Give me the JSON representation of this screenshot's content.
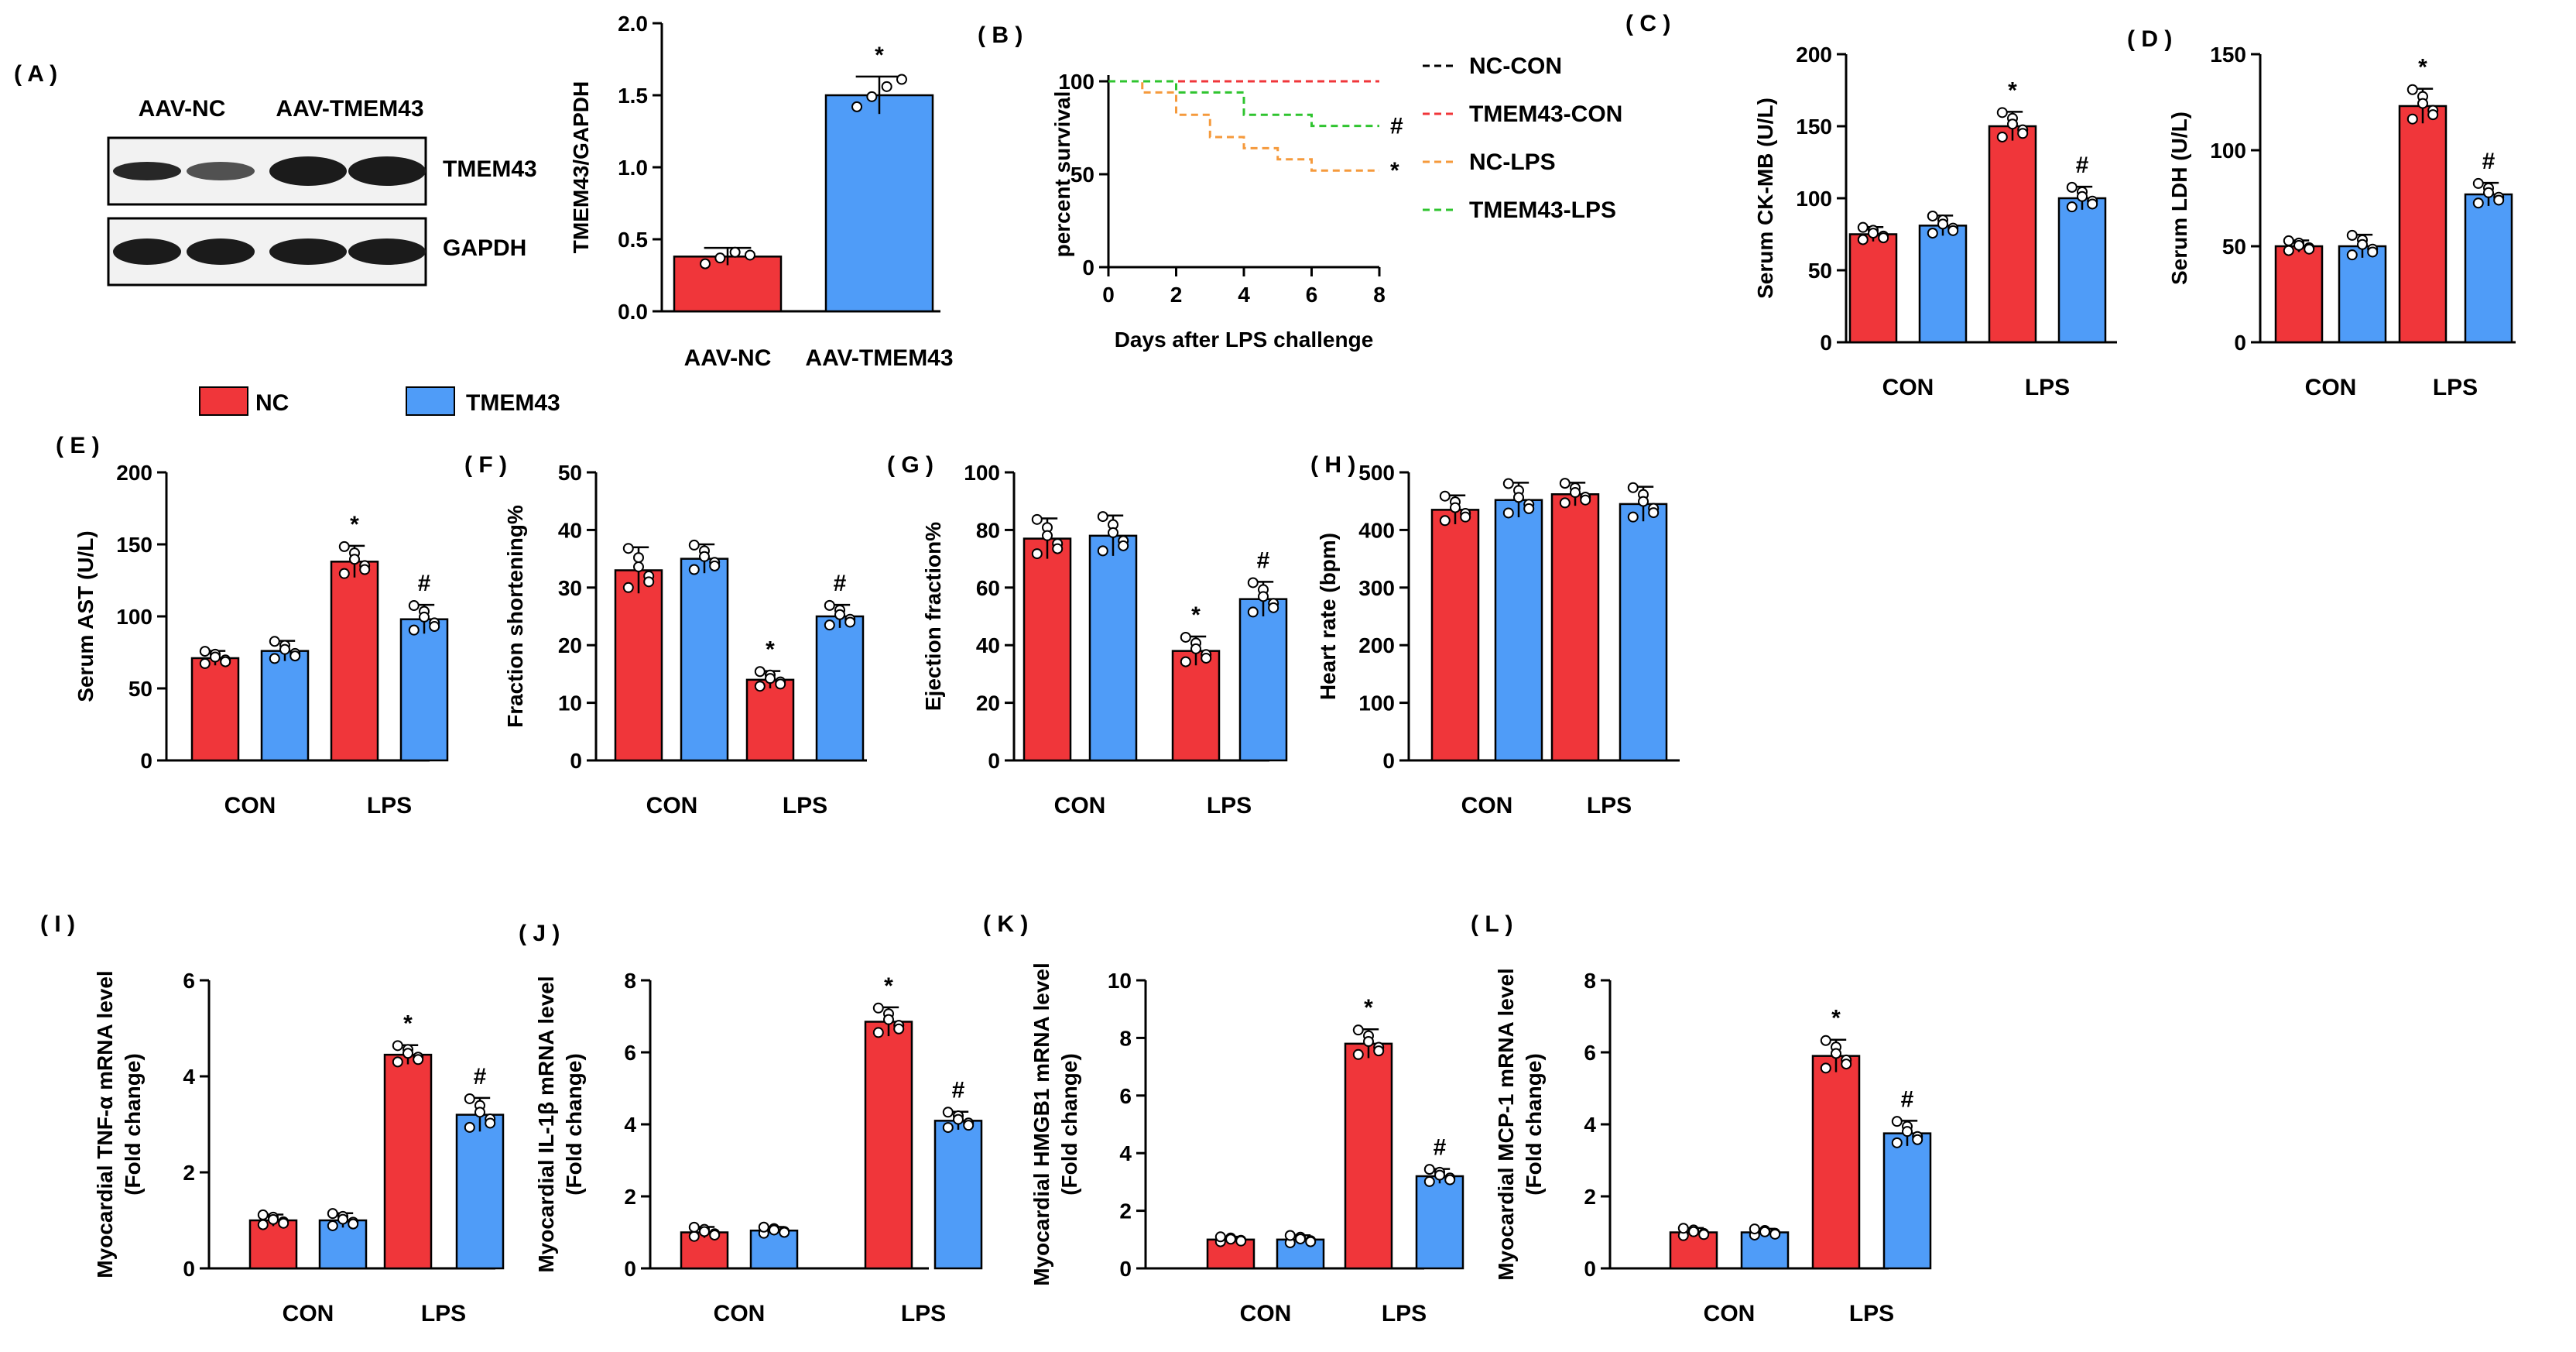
{
  "colors": {
    "nc": "#f0363a",
    "tmem43": "#4f9cf8",
    "blot_bg": "#f2f2f2",
    "band": "#1b1b1b",
    "nc_con": "#000000",
    "tmem43_con": "#f0363a",
    "nc_lps": "#f59a3c",
    "tmem43_lps": "#2fc42f"
  },
  "legend": {
    "nc": "NC",
    "tmem43": "TMEM43"
  },
  "panel_a": {
    "label": "( A )",
    "lane_labels": [
      "AAV-NC",
      "AAV-TMEM43"
    ],
    "band_labels": [
      "TMEM43",
      "GAPDH"
    ],
    "band_intensity": {
      "TMEM43": [
        0.95,
        0.75,
        1.0,
        1.0
      ],
      "GAPDH": [
        1.0,
        1.0,
        1.0,
        1.0
      ]
    }
  },
  "chart_data": [
    {
      "id": "quant",
      "type": "bar",
      "title": "",
      "xlabel": "",
      "ylabel": [
        "TMEM43/GAPDH"
      ],
      "ylim": [
        0,
        2.0
      ],
      "yticks": [
        "0.0",
        "0.5",
        "1.0",
        "1.5",
        "2.0"
      ],
      "bars": [
        {
          "label": "AAV-NC",
          "value": 0.38,
          "error": 0.06,
          "group": "nc",
          "points": [
            0.33,
            0.37,
            0.41,
            0.39
          ]
        },
        {
          "label": "AAV-TMEM43",
          "value": 1.5,
          "error": 0.13,
          "group": "tmem43",
          "points": [
            1.42,
            1.49,
            1.56,
            1.61
          ]
        }
      ],
      "annotations": [
        {
          "bar": 1,
          "text": "*"
        }
      ]
    },
    {
      "id": "B",
      "type": "line",
      "label": "( B )",
      "xlabel": "Days after LPS challenge",
      "ylabel": [
        "percent survival"
      ],
      "xlim": [
        0,
        8
      ],
      "xticks": [
        "0",
        "2",
        "4",
        "6",
        "8"
      ],
      "ylim": [
        0,
        100
      ],
      "yticks": [
        "0",
        "50",
        "100"
      ],
      "series": [
        {
          "name": "NC-CON",
          "color_key": "nc_con",
          "x": [
            0,
            8
          ],
          "y": [
            100,
            100
          ]
        },
        {
          "name": "TMEM43-CON",
          "color_key": "tmem43_con",
          "x": [
            0,
            8
          ],
          "y": [
            100,
            100
          ]
        },
        {
          "name": "NC-LPS",
          "color_key": "nc_lps",
          "x": [
            0,
            1,
            1,
            2,
            2,
            3,
            3,
            4,
            4,
            5,
            5,
            6,
            6,
            8
          ],
          "y": [
            100,
            100,
            94,
            94,
            82,
            82,
            70,
            70,
            64,
            64,
            58,
            58,
            52,
            52
          ]
        },
        {
          "name": "TMEM43-LPS",
          "color_key": "tmem43_lps",
          "x": [
            0,
            2,
            2,
            4,
            4,
            6,
            6,
            8
          ],
          "y": [
            100,
            100,
            94,
            94,
            82,
            82,
            76,
            76
          ]
        }
      ],
      "end_marks": [
        {
          "series": 3,
          "text": "#"
        },
        {
          "series": 2,
          "text": "*"
        }
      ]
    },
    {
      "id": "C",
      "type": "bar",
      "label": "( C )",
      "ylabel": [
        "Serum CK-MB (U/L)"
      ],
      "ylim": [
        0,
        200
      ],
      "yticks": [
        "0",
        "50",
        "100",
        "150",
        "200"
      ],
      "categories": [
        "CON",
        "LPS"
      ],
      "series": [
        {
          "name": "NC",
          "values": [
            75,
            150
          ],
          "errors": [
            5,
            10
          ]
        },
        {
          "name": "TMEM43",
          "values": [
            81,
            100
          ],
          "errors": [
            7,
            8
          ]
        }
      ],
      "annotations": [
        {
          "bar": 2,
          "text": "*"
        },
        {
          "bar": 3,
          "text": "#"
        }
      ]
    },
    {
      "id": "D",
      "type": "bar",
      "label": "( D )",
      "ylabel": [
        "Serum LDH (U/L)"
      ],
      "ylim": [
        0,
        150
      ],
      "yticks": [
        "0",
        "50",
        "100",
        "150"
      ],
      "categories": [
        "CON",
        "LPS"
      ],
      "series": [
        {
          "name": "NC",
          "values": [
            50,
            123
          ],
          "errors": [
            3,
            9
          ]
        },
        {
          "name": "TMEM43",
          "values": [
            50,
            77
          ],
          "errors": [
            6,
            6
          ]
        }
      ],
      "annotations": [
        {
          "bar": 2,
          "text": "*"
        },
        {
          "bar": 3,
          "text": "#"
        }
      ]
    },
    {
      "id": "E",
      "type": "bar",
      "label": "( E )",
      "ylabel": [
        "Serum AST (U/L)"
      ],
      "ylim": [
        0,
        200
      ],
      "yticks": [
        "0",
        "50",
        "100",
        "150",
        "200"
      ],
      "categories": [
        "CON",
        "LPS"
      ],
      "series": [
        {
          "name": "NC",
          "values": [
            71,
            138
          ],
          "errors": [
            5,
            11
          ]
        },
        {
          "name": "TMEM43",
          "values": [
            76,
            98
          ],
          "errors": [
            7,
            10
          ]
        }
      ],
      "annotations": [
        {
          "bar": 2,
          "text": "*"
        },
        {
          "bar": 3,
          "text": "#"
        }
      ]
    },
    {
      "id": "F",
      "type": "bar",
      "label": "( F )",
      "ylabel": [
        "Fraction shortening%"
      ],
      "ylim": [
        0,
        50
      ],
      "yticks": [
        "0",
        "10",
        "20",
        "30",
        "40",
        "50"
      ],
      "categories": [
        "CON",
        "LPS"
      ],
      "series": [
        {
          "name": "NC",
          "values": [
            33,
            14
          ],
          "errors": [
            4,
            1.5
          ]
        },
        {
          "name": "TMEM43",
          "values": [
            35,
            25
          ],
          "errors": [
            2.5,
            2
          ]
        }
      ],
      "annotations": [
        {
          "bar": 2,
          "text": "*"
        },
        {
          "bar": 3,
          "text": "#"
        }
      ]
    },
    {
      "id": "G",
      "type": "bar",
      "label": "( G )",
      "ylabel": [
        "Ejection fraction%"
      ],
      "ylim": [
        0,
        100
      ],
      "yticks": [
        "0",
        "20",
        "40",
        "60",
        "80",
        "100"
      ],
      "categories": [
        "CON",
        "LPS"
      ],
      "series": [
        {
          "name": "NC",
          "values": [
            77,
            38
          ],
          "errors": [
            7,
            5
          ]
        },
        {
          "name": "TMEM43",
          "values": [
            78,
            56
          ],
          "errors": [
            7,
            6
          ]
        }
      ],
      "annotations": [
        {
          "bar": 2,
          "text": "*"
        },
        {
          "bar": 3,
          "text": "#"
        }
      ]
    },
    {
      "id": "H",
      "type": "bar",
      "label": "( H )",
      "ylabel": [
        "Heart rate (bpm)"
      ],
      "ylim": [
        0,
        500
      ],
      "yticks": [
        "0",
        "100",
        "200",
        "300",
        "400",
        "500"
      ],
      "categories": [
        "CON",
        "LPS"
      ],
      "series": [
        {
          "name": "NC",
          "values": [
            435,
            462
          ],
          "errors": [
            25,
            20
          ]
        },
        {
          "name": "TMEM43",
          "values": [
            452,
            445
          ],
          "errors": [
            30,
            30
          ]
        }
      ],
      "annotations": []
    },
    {
      "id": "I",
      "type": "bar",
      "label": "( I )",
      "ylabel": [
        "Myocardial TNF-α mRNA level",
        "(Fold change)"
      ],
      "ylim": [
        0,
        6
      ],
      "yticks": [
        "0",
        "2",
        "4",
        "6"
      ],
      "categories": [
        "CON",
        "LPS"
      ],
      "series": [
        {
          "name": "NC",
          "values": [
            1.0,
            4.45
          ],
          "errors": [
            0.12,
            0.2
          ]
        },
        {
          "name": "TMEM43",
          "values": [
            1.0,
            3.2
          ],
          "errors": [
            0.15,
            0.35
          ]
        }
      ],
      "annotations": [
        {
          "bar": 2,
          "text": "*"
        },
        {
          "bar": 3,
          "text": "#"
        }
      ]
    },
    {
      "id": "J",
      "type": "bar",
      "label": "( J )",
      "ylabel": [
        "Myocardial IL-1β mRNA level",
        "(Fold change)"
      ],
      "ylim": [
        0,
        8
      ],
      "yticks": [
        "0",
        "2",
        "4",
        "6",
        "8"
      ],
      "categories": [
        "CON",
        "LPS"
      ],
      "series": [
        {
          "name": "NC",
          "values": [
            1.0,
            6.85
          ],
          "errors": [
            0.15,
            0.4
          ]
        },
        {
          "name": "TMEM43",
          "values": [
            1.05,
            4.1
          ],
          "errors": [
            0.1,
            0.25
          ]
        }
      ],
      "annotations": [
        {
          "bar": 2,
          "text": "*"
        },
        {
          "bar": 3,
          "text": "#"
        }
      ]
    },
    {
      "id": "K",
      "type": "bar",
      "label": "( K )",
      "ylabel": [
        "Myocardial HMGB1 mRNA level",
        "(Fold change)"
      ],
      "ylim": [
        0,
        10
      ],
      "yticks": [
        "0",
        "2",
        "4",
        "6",
        "8",
        "10"
      ],
      "categories": [
        "CON",
        "LPS"
      ],
      "series": [
        {
          "name": "NC",
          "values": [
            1.0,
            7.8
          ],
          "errors": [
            0.1,
            0.5
          ]
        },
        {
          "name": "TMEM43",
          "values": [
            1.0,
            3.2
          ],
          "errors": [
            0.15,
            0.25
          ]
        }
      ],
      "annotations": [
        {
          "bar": 2,
          "text": "*"
        },
        {
          "bar": 3,
          "text": "#"
        }
      ]
    },
    {
      "id": "L",
      "type": "bar",
      "label": "( L )",
      "ylabel": [
        "Myocardial MCP-1 mRNA level",
        "(Fold change)"
      ],
      "ylim": [
        0,
        8
      ],
      "yticks": [
        "0",
        "2",
        "4",
        "6",
        "8"
      ],
      "categories": [
        "CON",
        "LPS"
      ],
      "series": [
        {
          "name": "NC",
          "values": [
            1.0,
            5.9
          ],
          "errors": [
            0.12,
            0.45
          ]
        },
        {
          "name": "TMEM43",
          "values": [
            1.0,
            3.75
          ],
          "errors": [
            0.1,
            0.35
          ]
        }
      ],
      "annotations": [
        {
          "bar": 2,
          "text": "*"
        },
        {
          "bar": 3,
          "text": "#"
        }
      ]
    }
  ]
}
